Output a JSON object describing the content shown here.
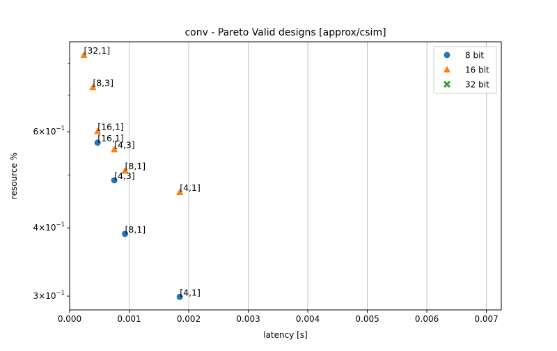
{
  "chart_data": {
    "type": "scatter",
    "title": "conv - Pareto Valid designs [approx/csim]",
    "xlabel": "latency [s]",
    "ylabel": "resource %",
    "xlim": [
      0.0,
      0.00725
    ],
    "ylim": [
      0.283,
      0.877
    ],
    "yscale": "log",
    "grid": "x-major-vertical",
    "legend_position": "top-right",
    "x_ticks": [
      {
        "value": 0.0,
        "label": "0.000"
      },
      {
        "value": 0.001,
        "label": "0.001"
      },
      {
        "value": 0.002,
        "label": "0.002"
      },
      {
        "value": 0.003,
        "label": "0.003"
      },
      {
        "value": 0.004,
        "label": "0.004"
      },
      {
        "value": 0.005,
        "label": "0.005"
      },
      {
        "value": 0.006,
        "label": "0.006"
      },
      {
        "value": 0.007,
        "label": "0.007"
      }
    ],
    "y_major_ticks": [
      {
        "value": 0.3,
        "mantissa": "3",
        "base": "10",
        "exp": "−1"
      },
      {
        "value": 0.4,
        "mantissa": "4",
        "base": "10",
        "exp": "−1"
      },
      {
        "value": 0.6,
        "mantissa": "6",
        "base": "10",
        "exp": "−1"
      }
    ],
    "y_minor_ticks": [
      0.5,
      0.7,
      0.8
    ],
    "series": [
      {
        "name": "8 bit",
        "marker": "circle",
        "color": "#1f77b4",
        "points": [
          {
            "x": 0.00047,
            "y": 0.573,
            "label": "[16,1]"
          },
          {
            "x": 0.00075,
            "y": 0.489,
            "label": "[4,3]"
          },
          {
            "x": 0.00093,
            "y": 0.39,
            "label": "[8,1]"
          },
          {
            "x": 0.00185,
            "y": 0.299,
            "label": "[4,1]"
          }
        ]
      },
      {
        "name": "16 bit",
        "marker": "triangle",
        "color": "#ff7f0e",
        "points": [
          {
            "x": 0.00024,
            "y": 0.829,
            "label": "[32,1]"
          },
          {
            "x": 0.00039,
            "y": 0.724,
            "label": "[8,3]"
          },
          {
            "x": 0.00047,
            "y": 0.601,
            "label": "[16,1]"
          },
          {
            "x": 0.00075,
            "y": 0.557,
            "label": "[4,3]"
          },
          {
            "x": 0.00093,
            "y": 0.509,
            "label": "[8,1]"
          },
          {
            "x": 0.00185,
            "y": 0.465,
            "label": "[4,1]"
          }
        ]
      },
      {
        "name": "32 bit",
        "marker": "x",
        "color": "#2ca02c",
        "points": []
      }
    ]
  }
}
